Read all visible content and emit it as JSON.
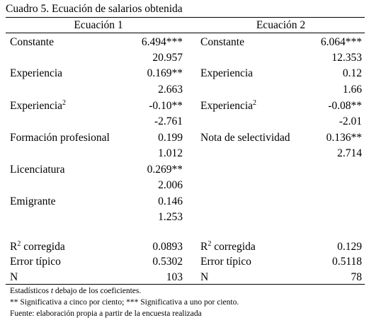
{
  "title": "Cuadro 5. Ecuación de salarios obtenida",
  "table": {
    "headers": [
      "Ecuación 1",
      "Ecuación 2"
    ],
    "rows": [
      {
        "left": {
          "label": "Constante",
          "value": "6.494***"
        },
        "right": {
          "label": "Constante",
          "value": "6.064***"
        }
      },
      {
        "left": {
          "value": "20.957"
        },
        "right": {
          "value": "12.353"
        }
      },
      {
        "left": {
          "label": "Experiencia",
          "value": "0.169**"
        },
        "right": {
          "label": "Experiencia",
          "value": "0.12"
        }
      },
      {
        "left": {
          "value": "2.663"
        },
        "right": {
          "value": "1.66"
        }
      },
      {
        "left": {
          "label": "Experiencia",
          "sup": "2",
          "value": "-0.10**"
        },
        "right": {
          "label": "Experiencia",
          "sup": "2",
          "value": "-0.08**"
        }
      },
      {
        "left": {
          "value": "-2.761"
        },
        "right": {
          "value": "-2.01"
        }
      },
      {
        "left": {
          "label": "Formación profesional",
          "value": "0.199"
        },
        "right": {
          "label": "Nota de selectividad",
          "value": "0.136**"
        }
      },
      {
        "left": {
          "value": "1.012"
        },
        "right": {
          "value": "2.714"
        }
      },
      {
        "left": {
          "label": "Licenciatura",
          "value": "0.269**"
        }
      },
      {
        "left": {
          "value": "2.006"
        }
      },
      {
        "left": {
          "label": "Emigrante",
          "value": "0.146"
        }
      },
      {
        "left": {
          "value": "1.253"
        }
      },
      {
        "left": {
          "label": "R",
          "sup": "2",
          "after": " corregida",
          "value": "0.0893"
        },
        "right": {
          "label": "R",
          "sup": "2",
          "after": " corregida",
          "value": "0.129"
        }
      },
      {
        "left": {
          "label": "Error típico",
          "value": "0.5302"
        },
        "right": {
          "label": "Error típico",
          "value": "0.5118"
        }
      },
      {
        "left": {
          "label": "N",
          "value": "103"
        },
        "right": {
          "label": "N",
          "value": "78"
        }
      }
    ]
  },
  "notes": [
    [
      "Estadísticos ",
      "t",
      " debajo de los coeficientes."
    ],
    [
      "** Significativa a cinco por ciento; *** Significativa a uno por ciento."
    ],
    [
      "Fuente: elaboración propia a partir de la encuesta realizada"
    ]
  ]
}
